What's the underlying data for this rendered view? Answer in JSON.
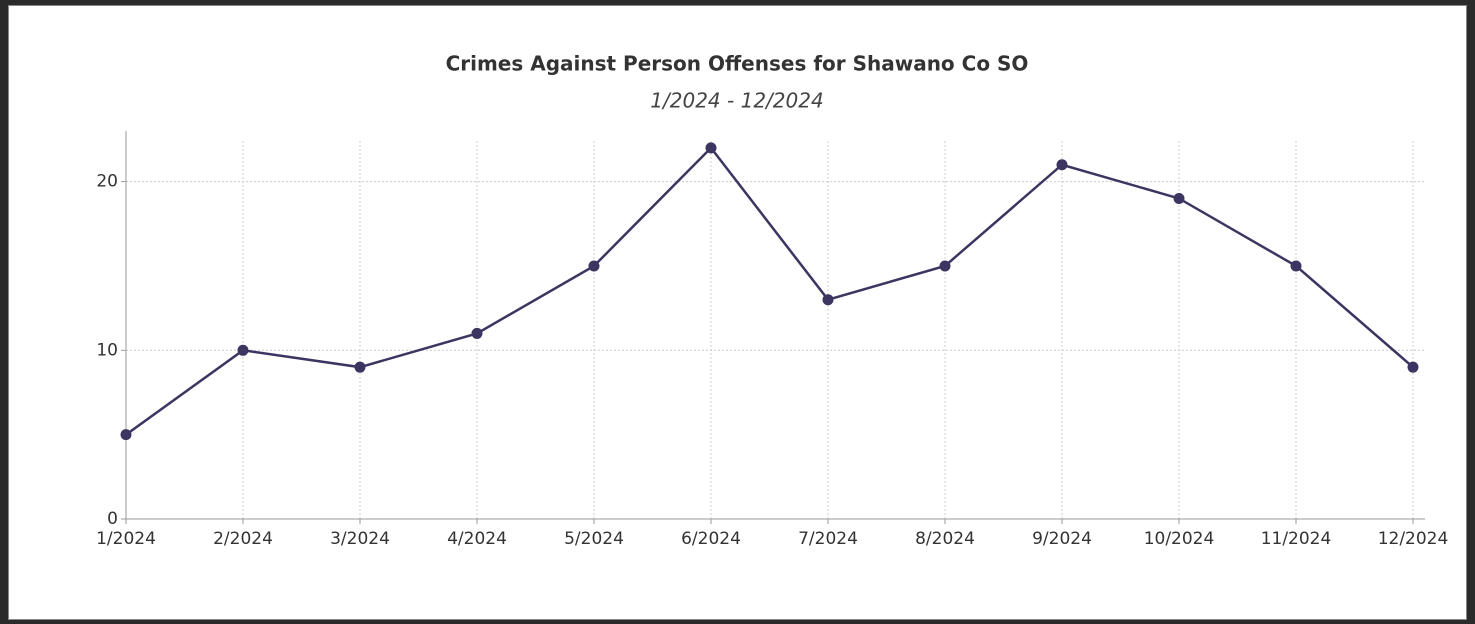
{
  "chart_data": {
    "type": "line",
    "title": "Crimes Against Person Offenses for Shawano Co SO",
    "subtitle": "1/2024 - 12/2024",
    "categories": [
      "1/2024",
      "2/2024",
      "3/2024",
      "4/2024",
      "5/2024",
      "6/2024",
      "7/2024",
      "8/2024",
      "9/2024",
      "10/2024",
      "11/2024",
      "12/2024"
    ],
    "values": [
      5,
      10,
      9,
      11,
      15,
      22,
      13,
      15,
      21,
      19,
      15,
      9
    ],
    "color": "#3d3561",
    "ylim": [
      0,
      23
    ],
    "yticks": [
      0,
      10,
      20
    ],
    "grid": true
  }
}
